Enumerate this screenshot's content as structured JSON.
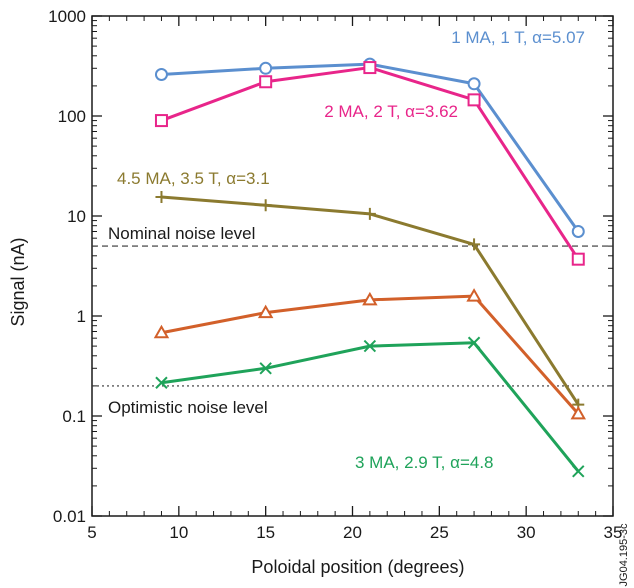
{
  "chart_data": {
    "type": "line",
    "xlabel": "Poloidal position (degrees)",
    "ylabel": "Signal (nA)",
    "xlim": [
      5,
      35
    ],
    "ylim": [
      0.01,
      1000
    ],
    "yscale": "log",
    "xticks": [
      5,
      10,
      15,
      20,
      25,
      30,
      35
    ],
    "xtick_labels": [
      "5",
      "10",
      "15",
      "20",
      "25",
      "30",
      "35"
    ],
    "yticks": [
      0.01,
      0.1,
      1,
      10,
      100,
      1000
    ],
    "ytick_labels": [
      "0.01",
      "0.1",
      "1",
      "10",
      "100",
      "1000"
    ],
    "x": [
      9,
      15,
      21,
      27,
      33
    ],
    "series": [
      {
        "name": "1 MA, 1 T, α=5.07",
        "color": "#5b8fcf",
        "marker": "circle",
        "values": [
          260,
          300,
          330,
          210,
          7
        ]
      },
      {
        "name": "2 MA, 2 T, α=3.62",
        "color": "#e8258a",
        "marker": "square",
        "values": [
          90,
          220,
          305,
          145,
          3.7
        ]
      },
      {
        "name": "4.5 MA, 3.5 T, α=3.1",
        "color": "#8b7a2f",
        "marker": "plus",
        "values": [
          15.5,
          12.8,
          10.5,
          5.2,
          0.13
        ]
      },
      {
        "name": "",
        "color": "#d2602a",
        "marker": "triangle",
        "values": [
          0.68,
          1.08,
          1.45,
          1.58,
          0.105
        ]
      },
      {
        "name": "3 MA, 2.9 T, α=4.8",
        "color": "#1fa35a",
        "marker": "x",
        "values": [
          0.215,
          0.3,
          0.5,
          0.54,
          0.028
        ]
      }
    ],
    "reference_lines": [
      {
        "label": "Nominal noise level",
        "value": 5,
        "style": "dashed"
      },
      {
        "label": "Optimistic noise level",
        "value": 0.2,
        "style": "dotted"
      }
    ],
    "figure_id": "JG04.195-3c",
    "grid": false,
    "legend": "inline labels"
  }
}
